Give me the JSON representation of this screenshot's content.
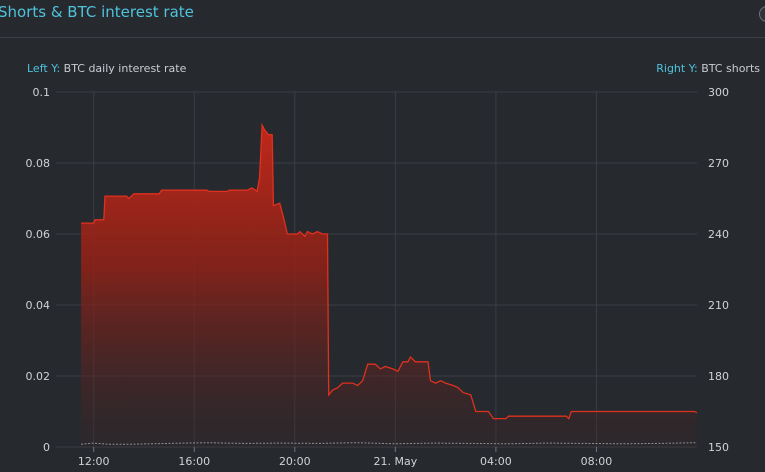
{
  "title": "Shorts & BTC interest rate",
  "left_axis_caption": {
    "key": "Left Y:",
    "text": "BTC daily interest rate"
  },
  "right_axis_caption": {
    "key": "Right Y:",
    "text": "BTC shorts"
  },
  "colors": {
    "background": "#26292e",
    "title": "#4fc3dc",
    "area_line": "#e0301e",
    "area_fill_top": "#c0281a",
    "shorts_line": "#8a8f96",
    "grid": "#3a3e45"
  },
  "chart_data": {
    "type": "area",
    "x_unit": "hours since 20 May 00:00",
    "x_ticks": [
      {
        "x": 12,
        "label": "12:00"
      },
      {
        "x": 16,
        "label": "16:00"
      },
      {
        "x": 20,
        "label": "20:00"
      },
      {
        "x": 24,
        "label": "21. May"
      },
      {
        "x": 28,
        "label": "04:00"
      },
      {
        "x": 32,
        "label": "08:00"
      }
    ],
    "xlim": [
      10.5,
      36.0
    ],
    "y_left": {
      "lim": [
        0,
        0.1
      ],
      "ticks": [
        "0",
        "0.02",
        "0.04",
        "0.06",
        "0.08",
        "0.1"
      ]
    },
    "y_right": {
      "lim": [
        150,
        300
      ],
      "ticks": [
        "150",
        "180",
        "210",
        "240",
        "270",
        "300"
      ]
    },
    "grid": true,
    "series": [
      {
        "name": "BTC shorts",
        "axis": "right",
        "type": "area",
        "points": [
          [
            11.5,
            244.6
          ],
          [
            12.0,
            244.6
          ],
          [
            12.05,
            246.0
          ],
          [
            12.4,
            246.0
          ],
          [
            12.45,
            256.0
          ],
          [
            13.3,
            256.0
          ],
          [
            13.4,
            255.0
          ],
          [
            13.6,
            257.0
          ],
          [
            14.6,
            257.0
          ],
          [
            14.7,
            258.5
          ],
          [
            16.5,
            258.5
          ],
          [
            16.6,
            258.0
          ],
          [
            17.3,
            258.0
          ],
          [
            17.4,
            258.5
          ],
          [
            18.1,
            258.5
          ],
          [
            18.3,
            259.5
          ],
          [
            18.5,
            258.0
          ],
          [
            18.6,
            264.0
          ],
          [
            18.7,
            286.0
          ],
          [
            18.8,
            284.0
          ],
          [
            18.95,
            282.0
          ],
          [
            19.1,
            282.0
          ],
          [
            19.15,
            252.0
          ],
          [
            19.4,
            253.0
          ],
          [
            19.55,
            247.0
          ],
          [
            19.7,
            240.0
          ],
          [
            20.1,
            240.0
          ],
          [
            20.2,
            241.0
          ],
          [
            20.4,
            239.0
          ],
          [
            20.5,
            241.0
          ],
          [
            20.7,
            240.0
          ],
          [
            20.9,
            241.0
          ],
          [
            21.1,
            240.0
          ],
          [
            21.3,
            240.0
          ],
          [
            21.35,
            172.0
          ],
          [
            21.5,
            174.0
          ],
          [
            21.7,
            175.0
          ],
          [
            21.9,
            177.0
          ],
          [
            22.3,
            177.0
          ],
          [
            22.5,
            176.0
          ],
          [
            22.7,
            178.0
          ],
          [
            22.9,
            185.0
          ],
          [
            23.2,
            185.0
          ],
          [
            23.4,
            183.0
          ],
          [
            23.6,
            184.0
          ],
          [
            23.9,
            183.0
          ],
          [
            24.1,
            182.0
          ],
          [
            24.3,
            186.0
          ],
          [
            24.5,
            186.0
          ],
          [
            24.6,
            188.0
          ],
          [
            24.8,
            186.0
          ],
          [
            25.3,
            186.0
          ],
          [
            25.4,
            178.0
          ],
          [
            25.6,
            177.0
          ],
          [
            25.8,
            178.0
          ],
          [
            26.0,
            177.0
          ],
          [
            26.3,
            176.0
          ],
          [
            26.5,
            175.0
          ],
          [
            26.7,
            173.0
          ],
          [
            27.0,
            172.0
          ],
          [
            27.2,
            165.0
          ],
          [
            27.7,
            165.0
          ],
          [
            27.9,
            162.0
          ],
          [
            28.4,
            162.0
          ],
          [
            28.5,
            163.0
          ],
          [
            30.8,
            163.0
          ],
          [
            30.9,
            162.0
          ],
          [
            31.0,
            165.0
          ],
          [
            33.5,
            165.0
          ],
          [
            33.6,
            165.0
          ],
          [
            35.9,
            165.0
          ],
          [
            36.0,
            164.5
          ]
        ]
      },
      {
        "name": "BTC daily interest rate",
        "axis": "left",
        "type": "line",
        "points": [
          [
            11.5,
            0.0008
          ],
          [
            12.0,
            0.0011
          ],
          [
            12.6,
            0.0008
          ],
          [
            13.5,
            0.0008
          ],
          [
            15.0,
            0.001
          ],
          [
            16.5,
            0.0012
          ],
          [
            18.0,
            0.001
          ],
          [
            19.5,
            0.0011
          ],
          [
            21.0,
            0.001
          ],
          [
            22.5,
            0.0012
          ],
          [
            24.0,
            0.0009
          ],
          [
            25.5,
            0.0011
          ],
          [
            27.0,
            0.001
          ],
          [
            28.5,
            0.0009
          ],
          [
            30.0,
            0.0011
          ],
          [
            31.5,
            0.001
          ],
          [
            33.0,
            0.0009
          ],
          [
            34.5,
            0.001
          ],
          [
            36.0,
            0.0012
          ]
        ]
      }
    ]
  }
}
